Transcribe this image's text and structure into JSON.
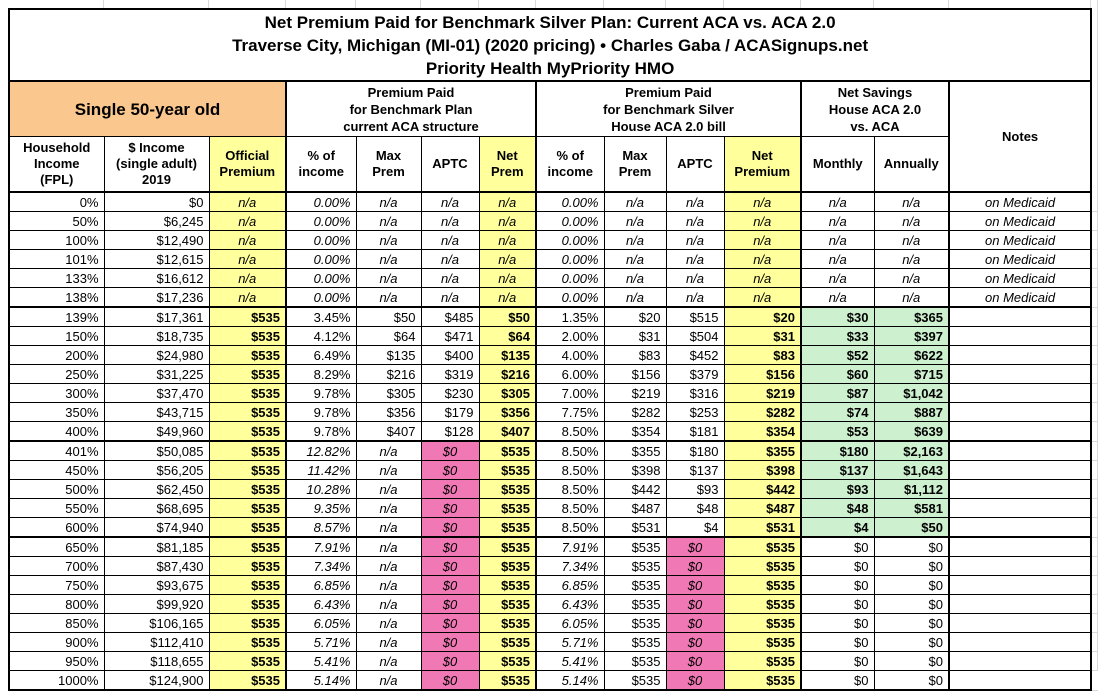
{
  "colors": {
    "yellow": "#FFFF9C",
    "orange": "#FAC78E",
    "pink": "#F078B4",
    "green": "#CDF0CE",
    "grid": "#D9D9D9",
    "border": "#000000"
  },
  "title": {
    "line1": "Net Premium Paid for Benchmark Silver Plan: Current ACA vs. ACA 2.0",
    "line2": "Traverse City, Michigan (MI-01) (2020 pricing) • Charles Gaba / ACASignups.net",
    "line3": "Priority Health MyPriority HMO"
  },
  "groups": {
    "subject": "Single 50-year old",
    "aca": [
      "Premium Paid",
      "for Benchmark Plan",
      "current ACA structure"
    ],
    "aca2": [
      "Premium Paid",
      "for Benchmark Silver",
      "House ACA 2.0 bill"
    ],
    "savings": [
      "Net Savings",
      "House ACA 2.0",
      "vs. ACA"
    ],
    "notes": "Notes"
  },
  "columns": {
    "fpl": [
      "Household",
      "Income",
      "(FPL)"
    ],
    "income": [
      "$ Income",
      "(single adult)",
      "2019"
    ],
    "official": [
      "Official",
      "Premium"
    ],
    "aca_pct": [
      "% of",
      "income"
    ],
    "aca_max": [
      "Max",
      "Prem"
    ],
    "aca_aptc": "APTC",
    "aca_net": [
      "Net",
      "Prem"
    ],
    "aca2_pct": [
      "% of",
      "income"
    ],
    "aca2_max": [
      "Max",
      "Prem"
    ],
    "aca2_aptc": "APTC",
    "aca2_net": [
      "Net",
      "Premium"
    ],
    "monthly": "Monthly",
    "annually": "Annually"
  },
  "rows": [
    {
      "group": "medicaid",
      "fpl": "0%",
      "income": "$0",
      "official": "n/a",
      "aca_pct": "0.00%",
      "aca_max": "n/a",
      "aca_aptc": "n/a",
      "aca_net": "n/a",
      "aca2_pct": "0.00%",
      "aca2_max": "n/a",
      "aca2_aptc": "n/a",
      "aca2_net": "n/a",
      "monthly": "n/a",
      "annually": "n/a",
      "notes": "on Medicaid"
    },
    {
      "group": "medicaid",
      "fpl": "50%",
      "income": "$6,245",
      "official": "n/a",
      "aca_pct": "0.00%",
      "aca_max": "n/a",
      "aca_aptc": "n/a",
      "aca_net": "n/a",
      "aca2_pct": "0.00%",
      "aca2_max": "n/a",
      "aca2_aptc": "n/a",
      "aca2_net": "n/a",
      "monthly": "n/a",
      "annually": "n/a",
      "notes": "on Medicaid"
    },
    {
      "group": "medicaid",
      "fpl": "100%",
      "income": "$12,490",
      "official": "n/a",
      "aca_pct": "0.00%",
      "aca_max": "n/a",
      "aca_aptc": "n/a",
      "aca_net": "n/a",
      "aca2_pct": "0.00%",
      "aca2_max": "n/a",
      "aca2_aptc": "n/a",
      "aca2_net": "n/a",
      "monthly": "n/a",
      "annually": "n/a",
      "notes": "on Medicaid"
    },
    {
      "group": "medicaid",
      "fpl": "101%",
      "income": "$12,615",
      "official": "n/a",
      "aca_pct": "0.00%",
      "aca_max": "n/a",
      "aca_aptc": "n/a",
      "aca_net": "n/a",
      "aca2_pct": "0.00%",
      "aca2_max": "n/a",
      "aca2_aptc": "n/a",
      "aca2_net": "n/a",
      "monthly": "n/a",
      "annually": "n/a",
      "notes": "on Medicaid"
    },
    {
      "group": "medicaid",
      "fpl": "133%",
      "income": "$16,612",
      "official": "n/a",
      "aca_pct": "0.00%",
      "aca_max": "n/a",
      "aca_aptc": "n/a",
      "aca_net": "n/a",
      "aca2_pct": "0.00%",
      "aca2_max": "n/a",
      "aca2_aptc": "n/a",
      "aca2_net": "n/a",
      "monthly": "n/a",
      "annually": "n/a",
      "notes": "on Medicaid"
    },
    {
      "group": "medicaid",
      "fpl": "138%",
      "income": "$17,236",
      "official": "n/a",
      "aca_pct": "0.00%",
      "aca_max": "n/a",
      "aca_aptc": "n/a",
      "aca_net": "n/a",
      "aca2_pct": "0.00%",
      "aca2_max": "n/a",
      "aca2_aptc": "n/a",
      "aca2_net": "n/a",
      "monthly": "n/a",
      "annually": "n/a",
      "notes": "on Medicaid"
    },
    {
      "group": "subsidized",
      "fpl": "139%",
      "income": "$17,361",
      "official": "$535",
      "aca_pct": "3.45%",
      "aca_max": "$50",
      "aca_aptc": "$485",
      "aca_net": "$50",
      "aca2_pct": "1.35%",
      "aca2_max": "$20",
      "aca2_aptc": "$515",
      "aca2_net": "$20",
      "monthly": "$30",
      "annually": "$365",
      "notes": ""
    },
    {
      "group": "subsidized",
      "fpl": "150%",
      "income": "$18,735",
      "official": "$535",
      "aca_pct": "4.12%",
      "aca_max": "$64",
      "aca_aptc": "$471",
      "aca_net": "$64",
      "aca2_pct": "2.00%",
      "aca2_max": "$31",
      "aca2_aptc": "$504",
      "aca2_net": "$31",
      "monthly": "$33",
      "annually": "$397",
      "notes": ""
    },
    {
      "group": "subsidized",
      "fpl": "200%",
      "income": "$24,980",
      "official": "$535",
      "aca_pct": "6.49%",
      "aca_max": "$135",
      "aca_aptc": "$400",
      "aca_net": "$135",
      "aca2_pct": "4.00%",
      "aca2_max": "$83",
      "aca2_aptc": "$452",
      "aca2_net": "$83",
      "monthly": "$52",
      "annually": "$622",
      "notes": ""
    },
    {
      "group": "subsidized",
      "fpl": "250%",
      "income": "$31,225",
      "official": "$535",
      "aca_pct": "8.29%",
      "aca_max": "$216",
      "aca_aptc": "$319",
      "aca_net": "$216",
      "aca2_pct": "6.00%",
      "aca2_max": "$156",
      "aca2_aptc": "$379",
      "aca2_net": "$156",
      "monthly": "$60",
      "annually": "$715",
      "notes": ""
    },
    {
      "group": "subsidized",
      "fpl": "300%",
      "income": "$37,470",
      "official": "$535",
      "aca_pct": "9.78%",
      "aca_max": "$305",
      "aca_aptc": "$230",
      "aca_net": "$305",
      "aca2_pct": "7.00%",
      "aca2_max": "$219",
      "aca2_aptc": "$316",
      "aca2_net": "$219",
      "monthly": "$87",
      "annually": "$1,042",
      "notes": ""
    },
    {
      "group": "subsidized",
      "fpl": "350%",
      "income": "$43,715",
      "official": "$535",
      "aca_pct": "9.78%",
      "aca_max": "$356",
      "aca_aptc": "$179",
      "aca_net": "$356",
      "aca2_pct": "7.75%",
      "aca2_max": "$282",
      "aca2_aptc": "$253",
      "aca2_net": "$282",
      "monthly": "$74",
      "annually": "$887",
      "notes": ""
    },
    {
      "group": "subsidized",
      "fpl": "400%",
      "income": "$49,960",
      "official": "$535",
      "aca_pct": "9.78%",
      "aca_max": "$407",
      "aca_aptc": "$128",
      "aca_net": "$407",
      "aca2_pct": "8.50%",
      "aca2_max": "$354",
      "aca2_aptc": "$181",
      "aca2_net": "$354",
      "monthly": "$53",
      "annually": "$639",
      "notes": ""
    },
    {
      "group": "cliff",
      "fpl": "401%",
      "income": "$50,085",
      "official": "$535",
      "aca_pct": "12.82%",
      "aca_max": "n/a",
      "aca_aptc": "$0",
      "aca_net": "$535",
      "aca2_pct": "8.50%",
      "aca2_max": "$355",
      "aca2_aptc": "$180",
      "aca2_net": "$355",
      "monthly": "$180",
      "annually": "$2,163",
      "notes": ""
    },
    {
      "group": "cliff",
      "fpl": "450%",
      "income": "$56,205",
      "official": "$535",
      "aca_pct": "11.42%",
      "aca_max": "n/a",
      "aca_aptc": "$0",
      "aca_net": "$535",
      "aca2_pct": "8.50%",
      "aca2_max": "$398",
      "aca2_aptc": "$137",
      "aca2_net": "$398",
      "monthly": "$137",
      "annually": "$1,643",
      "notes": ""
    },
    {
      "group": "cliff",
      "fpl": "500%",
      "income": "$62,450",
      "official": "$535",
      "aca_pct": "10.28%",
      "aca_max": "n/a",
      "aca_aptc": "$0",
      "aca_net": "$535",
      "aca2_pct": "8.50%",
      "aca2_max": "$442",
      "aca2_aptc": "$93",
      "aca2_net": "$442",
      "monthly": "$93",
      "annually": "$1,112",
      "notes": ""
    },
    {
      "group": "cliff",
      "fpl": "550%",
      "income": "$68,695",
      "official": "$535",
      "aca_pct": "9.35%",
      "aca_max": "n/a",
      "aca_aptc": "$0",
      "aca_net": "$535",
      "aca2_pct": "8.50%",
      "aca2_max": "$487",
      "aca2_aptc": "$48",
      "aca2_net": "$487",
      "monthly": "$48",
      "annually": "$581",
      "notes": ""
    },
    {
      "group": "cliff",
      "fpl": "600%",
      "income": "$74,940",
      "official": "$535",
      "aca_pct": "8.57%",
      "aca_max": "n/a",
      "aca_aptc": "$0",
      "aca_net": "$535",
      "aca2_pct": "8.50%",
      "aca2_max": "$531",
      "aca2_aptc": "$4",
      "aca2_net": "$531",
      "monthly": "$4",
      "annually": "$50",
      "notes": ""
    },
    {
      "group": "over600",
      "fpl": "650%",
      "income": "$81,185",
      "official": "$535",
      "aca_pct": "7.91%",
      "aca_max": "n/a",
      "aca_aptc": "$0",
      "aca_net": "$535",
      "aca2_pct": "7.91%",
      "aca2_max": "$535",
      "aca2_aptc": "$0",
      "aca2_net": "$535",
      "monthly": "$0",
      "annually": "$0",
      "notes": ""
    },
    {
      "group": "over600",
      "fpl": "700%",
      "income": "$87,430",
      "official": "$535",
      "aca_pct": "7.34%",
      "aca_max": "n/a",
      "aca_aptc": "$0",
      "aca_net": "$535",
      "aca2_pct": "7.34%",
      "aca2_max": "$535",
      "aca2_aptc": "$0",
      "aca2_net": "$535",
      "monthly": "$0",
      "annually": "$0",
      "notes": ""
    },
    {
      "group": "over600",
      "fpl": "750%",
      "income": "$93,675",
      "official": "$535",
      "aca_pct": "6.85%",
      "aca_max": "n/a",
      "aca_aptc": "$0",
      "aca_net": "$535",
      "aca2_pct": "6.85%",
      "aca2_max": "$535",
      "aca2_aptc": "$0",
      "aca2_net": "$535",
      "monthly": "$0",
      "annually": "$0",
      "notes": ""
    },
    {
      "group": "over600",
      "fpl": "800%",
      "income": "$99,920",
      "official": "$535",
      "aca_pct": "6.43%",
      "aca_max": "n/a",
      "aca_aptc": "$0",
      "aca_net": "$535",
      "aca2_pct": "6.43%",
      "aca2_max": "$535",
      "aca2_aptc": "$0",
      "aca2_net": "$535",
      "monthly": "$0",
      "annually": "$0",
      "notes": ""
    },
    {
      "group": "over600",
      "fpl": "850%",
      "income": "$106,165",
      "official": "$535",
      "aca_pct": "6.05%",
      "aca_max": "n/a",
      "aca_aptc": "$0",
      "aca_net": "$535",
      "aca2_pct": "6.05%",
      "aca2_max": "$535",
      "aca2_aptc": "$0",
      "aca2_net": "$535",
      "monthly": "$0",
      "annually": "$0",
      "notes": ""
    },
    {
      "group": "over600",
      "fpl": "900%",
      "income": "$112,410",
      "official": "$535",
      "aca_pct": "5.71%",
      "aca_max": "n/a",
      "aca_aptc": "$0",
      "aca_net": "$535",
      "aca2_pct": "5.71%",
      "aca2_max": "$535",
      "aca2_aptc": "$0",
      "aca2_net": "$535",
      "monthly": "$0",
      "annually": "$0",
      "notes": ""
    },
    {
      "group": "over600",
      "fpl": "950%",
      "income": "$118,655",
      "official": "$535",
      "aca_pct": "5.41%",
      "aca_max": "n/a",
      "aca_aptc": "$0",
      "aca_net": "$535",
      "aca2_pct": "5.41%",
      "aca2_max": "$535",
      "aca2_aptc": "$0",
      "aca2_net": "$535",
      "monthly": "$0",
      "annually": "$0",
      "notes": ""
    },
    {
      "group": "over600",
      "fpl": "1000%",
      "income": "$124,900",
      "official": "$535",
      "aca_pct": "5.14%",
      "aca_max": "n/a",
      "aca_aptc": "$0",
      "aca_net": "$535",
      "aca2_pct": "5.14%",
      "aca2_max": "$535",
      "aca2_aptc": "$0",
      "aca2_net": "$535",
      "monthly": "$0",
      "annually": "$0",
      "notes": ""
    }
  ]
}
